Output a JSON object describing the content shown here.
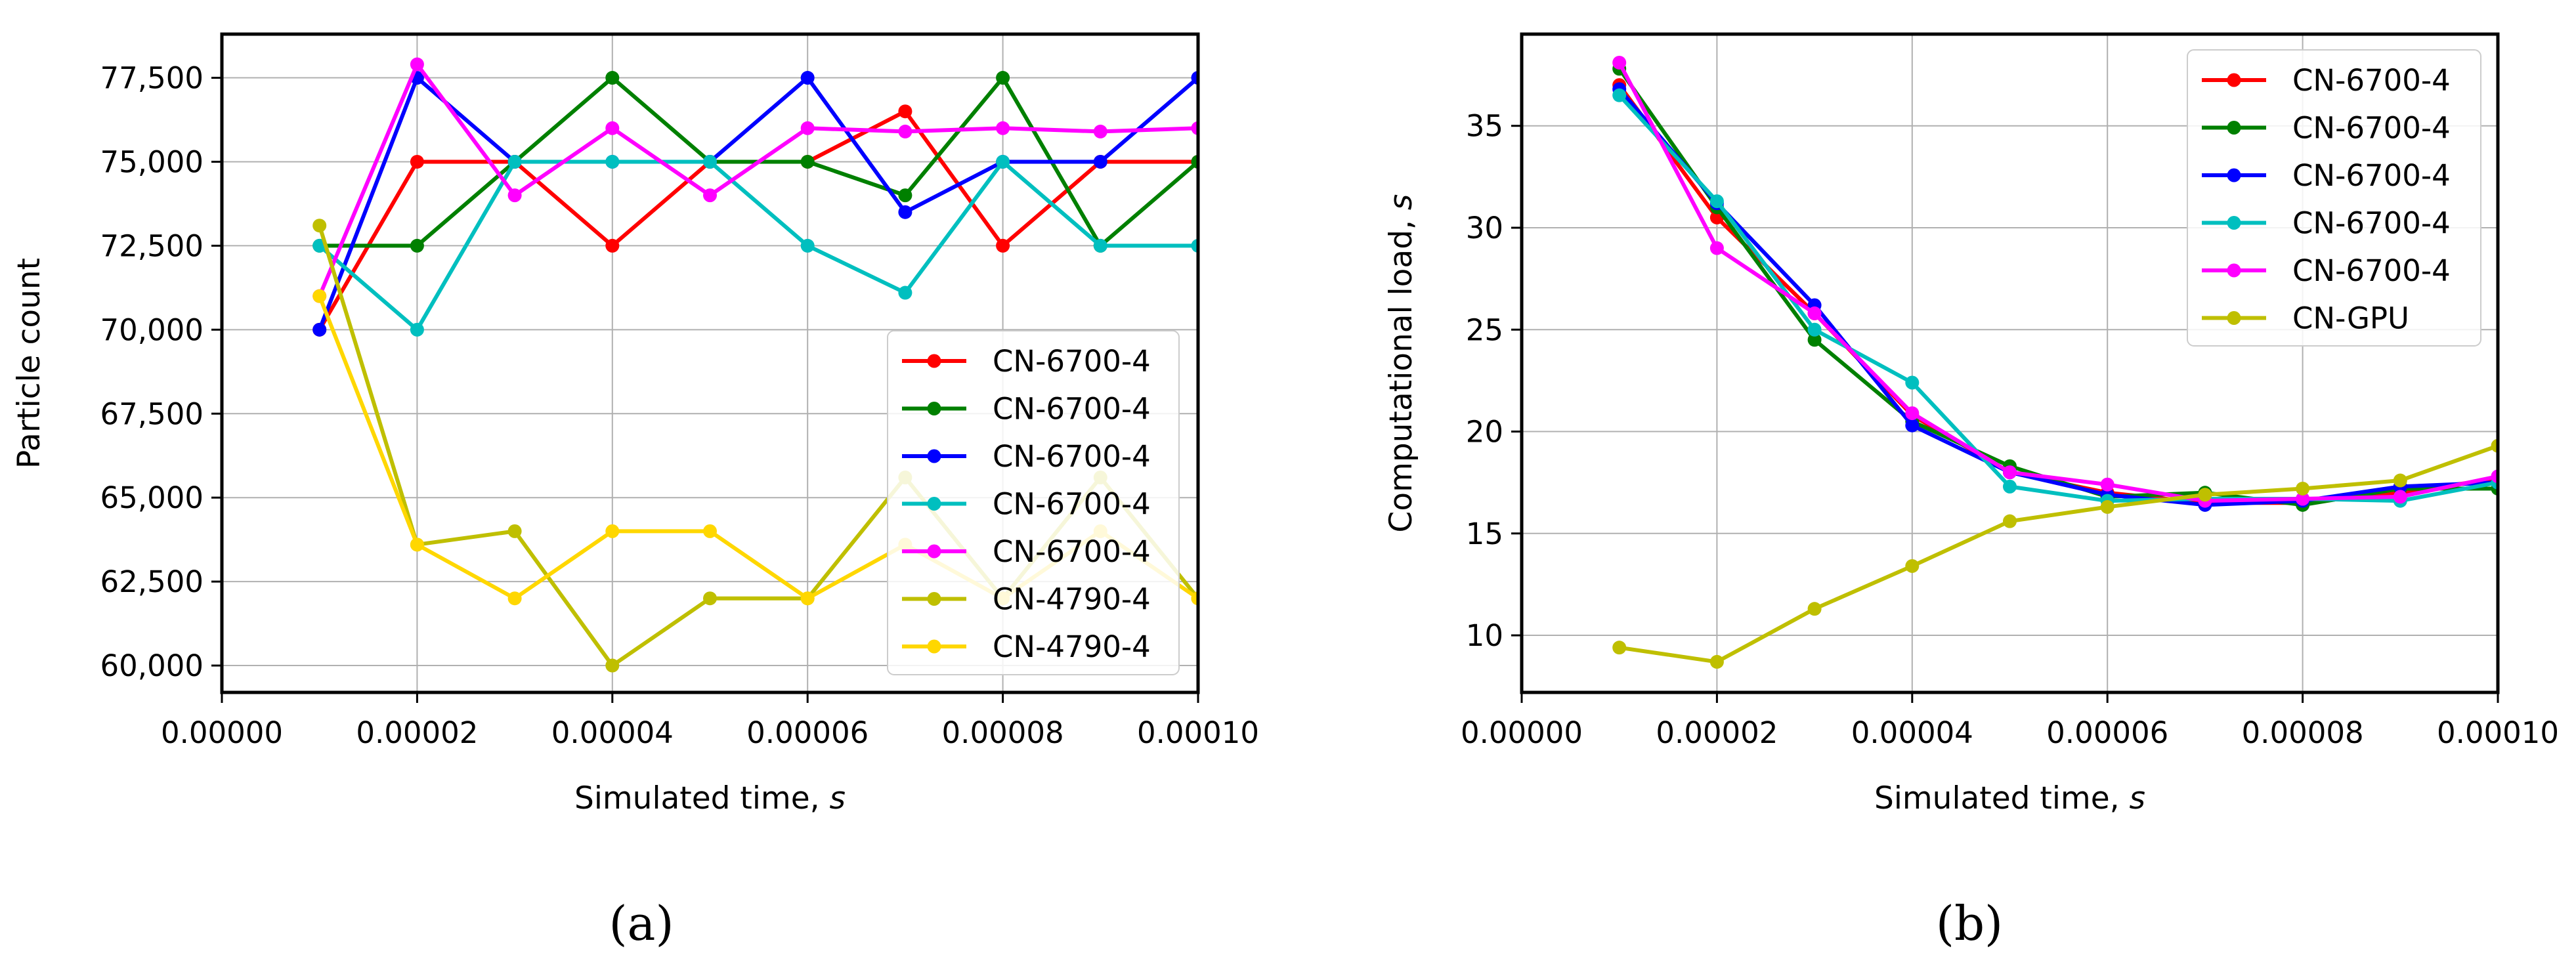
{
  "figure": {
    "panel_labels": [
      "(a)",
      "(b)"
    ]
  },
  "chart_data": [
    {
      "type": "line",
      "panel": "(a)",
      "title": "",
      "xlabel": "Simulated time, ",
      "xlabel_unit": "s",
      "ylabel": "Particle count",
      "xlim": [
        0,
        0.0001
      ],
      "ylim": [
        59200,
        78800
      ],
      "x_ticks": [
        0,
        2e-05,
        4e-05,
        6e-05,
        8e-05,
        0.0001
      ],
      "x_tick_labels": [
        "0.00000",
        "0.00002",
        "0.00004",
        "0.00006",
        "0.00008",
        "0.00010"
      ],
      "y_ticks": [
        60000,
        62500,
        65000,
        67500,
        70000,
        72500,
        75000,
        77500
      ],
      "y_tick_labels": [
        "60,000",
        "62,500",
        "65,000",
        "67,500",
        "70,000",
        "72,500",
        "75,000",
        "77,500"
      ],
      "grid": true,
      "legend_position": "lower-right",
      "x": [
        1e-05,
        2e-05,
        3e-05,
        4e-05,
        5e-05,
        6e-05,
        7e-05,
        8e-05,
        9e-05,
        0.0001
      ],
      "series": [
        {
          "name": "CN-6700-4",
          "color": "#ff0000",
          "values": [
            70000,
            75000,
            75000,
            72500,
            75000,
            75000,
            76500,
            72500,
            75000,
            75000
          ]
        },
        {
          "name": "CN-6700-4",
          "color": "#008000",
          "values": [
            72500,
            72500,
            75000,
            77500,
            75000,
            75000,
            74000,
            77500,
            72500,
            75000
          ]
        },
        {
          "name": "CN-6700-4",
          "color": "#0000ff",
          "values": [
            70000,
            77500,
            75000,
            75000,
            75000,
            77500,
            73500,
            75000,
            75000,
            77500
          ]
        },
        {
          "name": "CN-6700-4",
          "color": "#00bfbf",
          "values": [
            72500,
            70000,
            75000,
            75000,
            75000,
            72500,
            71100,
            75000,
            72500,
            72500
          ]
        },
        {
          "name": "CN-6700-4",
          "color": "#ff00ff",
          "values": [
            71000,
            77900,
            74000,
            76000,
            74000,
            76000,
            75900,
            76000,
            75900,
            76000
          ]
        },
        {
          "name": "CN-4790-4",
          "color": "#bfbf00",
          "values": [
            73100,
            63600,
            64000,
            60000,
            62000,
            62000,
            65600,
            62000,
            65600,
            62000
          ]
        },
        {
          "name": "CN-4790-4",
          "color": "#ffd700",
          "values": [
            71000,
            63600,
            62000,
            64000,
            64000,
            62000,
            63600,
            62000,
            64000,
            62000
          ]
        }
      ]
    },
    {
      "type": "line",
      "panel": "(b)",
      "title": "",
      "xlabel": "Simulated time, ",
      "xlabel_unit": "s",
      "ylabel": "Computational load, ",
      "ylabel_unit": "s",
      "xlim": [
        0,
        0.0001
      ],
      "ylim": [
        7.2,
        39.5
      ],
      "x_ticks": [
        0,
        2e-05,
        4e-05,
        6e-05,
        8e-05,
        0.0001
      ],
      "x_tick_labels": [
        "0.00000",
        "0.00002",
        "0.00004",
        "0.00006",
        "0.00008",
        "0.00010"
      ],
      "y_ticks": [
        10,
        15,
        20,
        25,
        30,
        35
      ],
      "y_tick_labels": [
        "10",
        "15",
        "20",
        "25",
        "30",
        "35"
      ],
      "grid": true,
      "legend_position": "top-right",
      "x": [
        1e-05,
        2e-05,
        3e-05,
        4e-05,
        5e-05,
        6e-05,
        7e-05,
        8e-05,
        9e-05,
        0.0001
      ],
      "series": [
        {
          "name": "CN-6700-4",
          "color": "#ff0000",
          "values": [
            37.0,
            30.5,
            25.8,
            20.8,
            18.0,
            17.0,
            16.5,
            16.5,
            17.0,
            17.7
          ]
        },
        {
          "name": "CN-6700-4",
          "color": "#008000",
          "values": [
            37.8,
            31.0,
            24.5,
            20.5,
            18.3,
            16.8,
            17.0,
            16.4,
            17.2,
            17.2
          ]
        },
        {
          "name": "CN-6700-4",
          "color": "#0000ff",
          "values": [
            36.8,
            31.2,
            26.2,
            20.3,
            18.0,
            16.9,
            16.4,
            16.6,
            17.3,
            17.5
          ]
        },
        {
          "name": "CN-6700-4",
          "color": "#00bfbf",
          "values": [
            36.5,
            31.3,
            25.0,
            22.4,
            17.3,
            16.6,
            16.7,
            16.7,
            16.6,
            17.5
          ]
        },
        {
          "name": "CN-6700-4",
          "color": "#ff00ff",
          "values": [
            38.1,
            29.0,
            25.8,
            20.9,
            18.0,
            17.4,
            16.6,
            16.7,
            16.8,
            17.8
          ]
        },
        {
          "name": "CN-GPU",
          "color": "#bfbf00",
          "values": [
            9.4,
            8.7,
            11.3,
            13.4,
            15.6,
            16.3,
            16.9,
            17.2,
            17.6,
            19.3
          ]
        }
      ]
    }
  ]
}
